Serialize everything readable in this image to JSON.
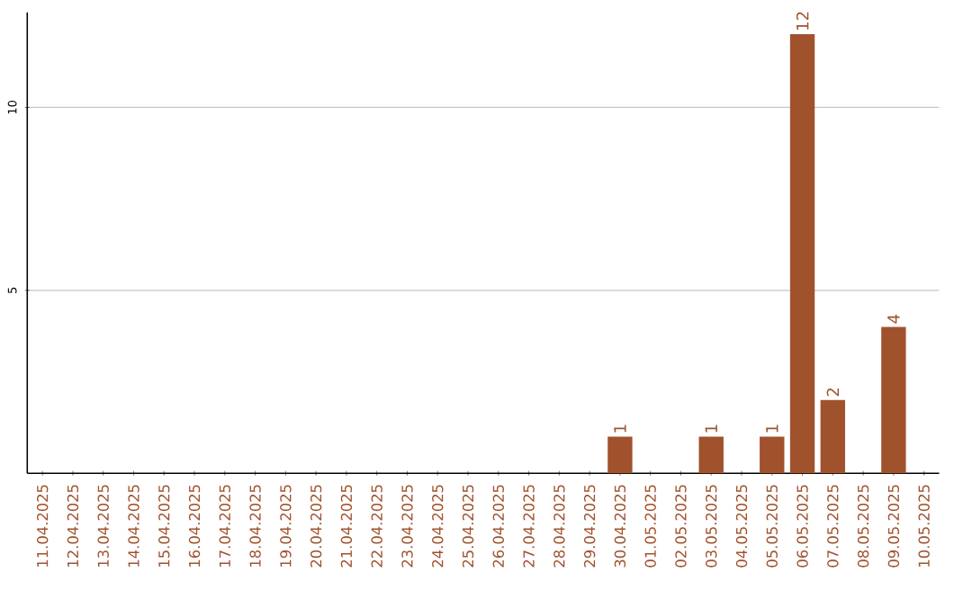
{
  "chart_data": {
    "type": "bar",
    "color": "#a0522d",
    "categories": [
      "11.04.2025",
      "12.04.2025",
      "13.04.2025",
      "14.04.2025",
      "15.04.2025",
      "16.04.2025",
      "17.04.2025",
      "18.04.2025",
      "19.04.2025",
      "20.04.2025",
      "21.04.2025",
      "22.04.2025",
      "23.04.2025",
      "24.04.2025",
      "25.04.2025",
      "26.04.2025",
      "27.04.2025",
      "28.04.2025",
      "29.04.2025",
      "30.04.2025",
      "01.05.2025",
      "02.05.2025",
      "03.05.2025",
      "04.05.2025",
      "05.05.2025",
      "06.05.2025",
      "07.05.2025",
      "08.05.2025",
      "09.05.2025",
      "10.05.2025"
    ],
    "values": [
      0,
      0,
      0,
      0,
      0,
      0,
      0,
      0,
      0,
      0,
      0,
      0,
      0,
      0,
      0,
      0,
      0,
      0,
      0,
      1,
      0,
      0,
      1,
      0,
      1,
      12,
      2,
      0,
      4,
      0
    ],
    "value_labels": [
      null,
      null,
      null,
      null,
      null,
      null,
      null,
      null,
      null,
      null,
      null,
      null,
      null,
      null,
      null,
      null,
      null,
      null,
      null,
      "1",
      null,
      null,
      "1",
      null,
      "1",
      "12",
      "2",
      null,
      "4",
      null
    ],
    "ylim": [
      0,
      12.6
    ],
    "yticks": [
      5,
      10
    ],
    "grid": "y"
  }
}
